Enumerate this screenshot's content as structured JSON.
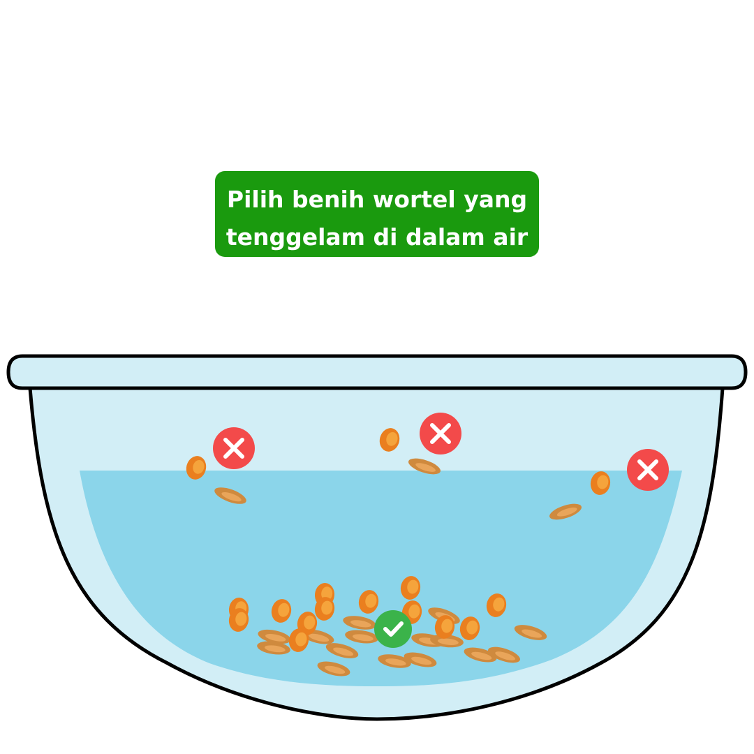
{
  "instruction": {
    "line1": "Pilih benih wortel yang",
    "line2": "tenggelam di dalam air"
  },
  "colors": {
    "title_bg": "#1a9a0e",
    "bowl_fill": "#d2eef6",
    "water_fill": "#8bd5ea",
    "outline": "#000000",
    "seed_flat_outer": "#cf8a3e",
    "seed_flat_inner": "#e9a55a",
    "seed_round_outer": "#ea7f1f",
    "seed_round_inner": "#f5a43c",
    "wrong_marker": "#f34a4a",
    "right_marker": "#3bb34a"
  },
  "markers": [
    {
      "name": "wrong-mark-left",
      "type": "wrong"
    },
    {
      "name": "wrong-mark-middle",
      "type": "wrong"
    },
    {
      "name": "wrong-mark-right",
      "type": "wrong"
    },
    {
      "name": "correct-mark-bottom",
      "type": "correct"
    }
  ]
}
